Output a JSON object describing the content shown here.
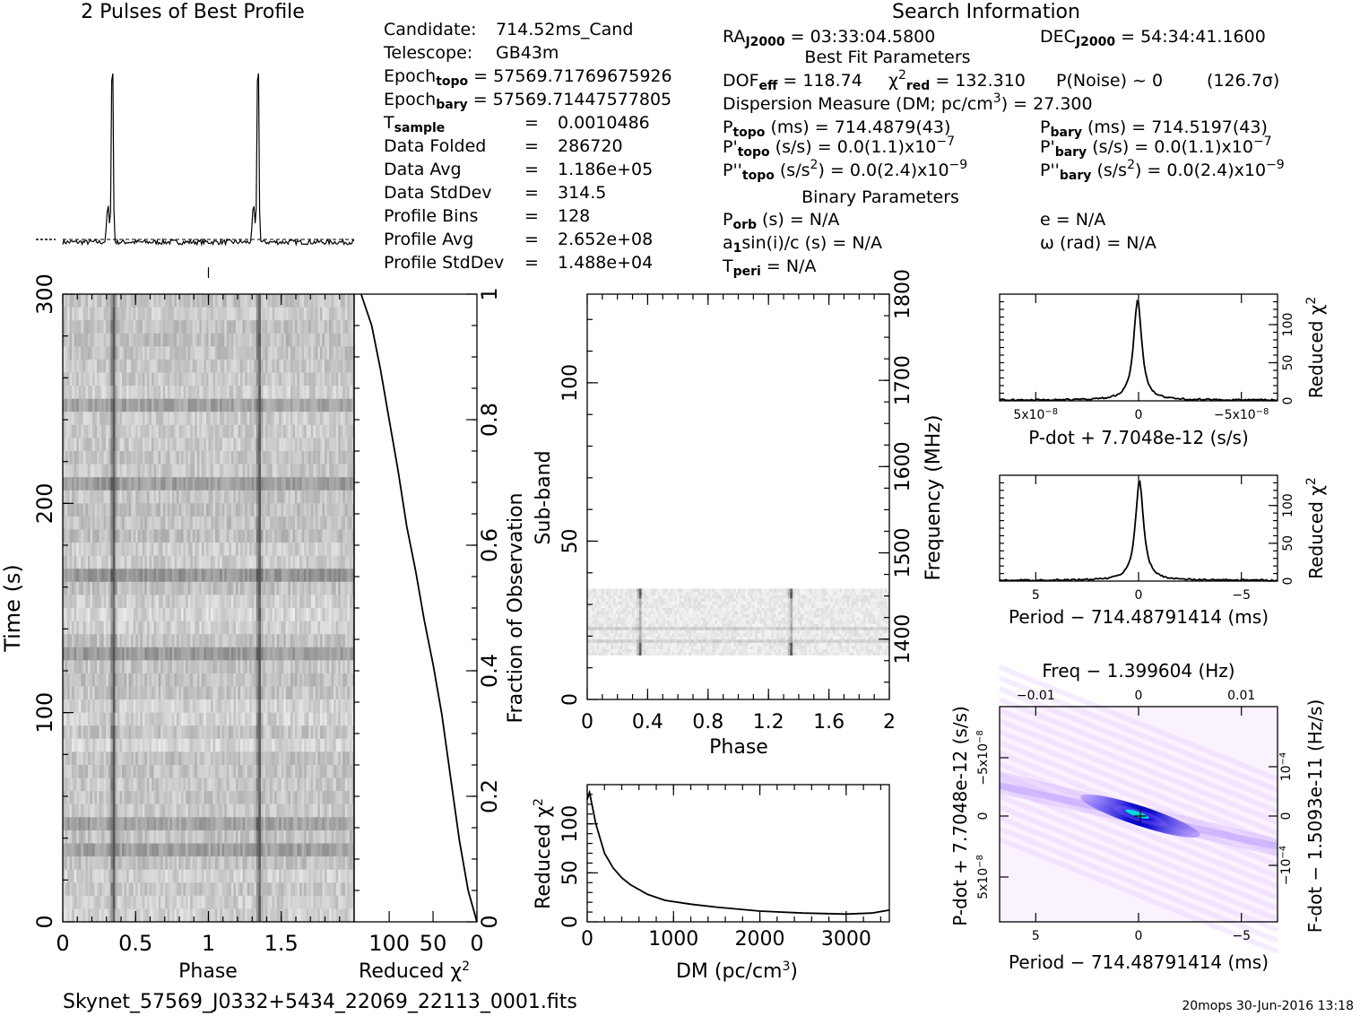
{
  "info": {
    "search_title": "Search Information",
    "profile_title": "2 Pulses of Best Profile",
    "fits_file": "Skynet_57569_J0332+5434_22069_22113_0001.fits",
    "footer_right": "20mops 30-Jun-2016 13:18",
    "col1": [
      {
        "label": "Candidate:",
        "value": "714.52ms_Cand"
      },
      {
        "label": "Telescope:",
        "value": "GB43m"
      },
      {
        "label": "Epoch",
        "sub": "topo",
        "value": "= 57569.71769675926"
      },
      {
        "label": "Epoch",
        "sub": "bary",
        "value": "= 57569.71447577805"
      },
      {
        "label": "T",
        "sub": "sample",
        "eq": "=",
        "value": "0.0010486"
      },
      {
        "label": "Data Folded",
        "eq": "=",
        "value": "286720"
      },
      {
        "label": "Data Avg",
        "eq": "=",
        "value": "1.186e+05"
      },
      {
        "label": "Data StdDev",
        "eq": "=",
        "value": "314.5"
      },
      {
        "label": "Profile Bins",
        "eq": "=",
        "value": "128"
      },
      {
        "label": "Profile Avg",
        "eq": "=",
        "value": "2.652e+08"
      },
      {
        "label": "Profile StdDev",
        "eq": "=",
        "value": "1.488e+04"
      }
    ],
    "ra": {
      "label": "RA",
      "sub": "J2000",
      "value": "= 03:33:04.5800"
    },
    "dec": {
      "label": "DEC",
      "sub": "J2000",
      "value": "= 54:34:41.1600"
    },
    "best_fit_title": "Best Fit Parameters",
    "dof": {
      "label": "DOF",
      "sub": "eff",
      "value": "= 118.74"
    },
    "chi2red": {
      "label": "χ",
      "sup": "2",
      "sub": "red",
      "value": "= 132.310"
    },
    "pnoise": {
      "text": "P(Noise) ~ 0",
      "sigma": "(126.7σ)"
    },
    "dm": {
      "text": "Dispersion Measure (DM; pc/cm",
      "sup": "3",
      "tail": ") = 27.300"
    },
    "ptopo": {
      "label": "P",
      "sub": "topo",
      "units": "(ms) =",
      "value": "714.4879(43)"
    },
    "pbary": {
      "label": "P",
      "sub": "bary",
      "units": "(ms) =",
      "value": "714.5197(43)"
    },
    "pdtopo": {
      "label": "P'",
      "sub": "topo",
      "units": "(s/s) = 0.0(1.1)x10",
      "exp": "−7"
    },
    "pdbary": {
      "label": "P'",
      "sub": "bary",
      "units": "(s/s) = 0.0(1.1)x10",
      "exp": "−7"
    },
    "pddtopo": {
      "label": "P''",
      "sub": "topo",
      "units": "(s/s",
      "sup": "2",
      "tail": ") = 0.0(2.4)x10",
      "exp": "−9"
    },
    "pddbary": {
      "label": "P''",
      "sub": "bary",
      "units": "(s/s",
      "sup": "2",
      "tail": ") = 0.0(2.4)x10",
      "exp": "−9"
    },
    "binary_title": "Binary Parameters",
    "porb": {
      "label": "P",
      "sub": "orb",
      "value": "(s) = N/A"
    },
    "a1": {
      "pre": "a",
      "sub": "1",
      "value": "sin(i)/c (s) = N/A"
    },
    "tperi": {
      "label": "T",
      "sub": "peri",
      "value": "= N/A"
    },
    "ecc": "e = N/A",
    "omega": "ω (rad) = N/A"
  },
  "chart_data": [
    {
      "type": "line",
      "name": "profile",
      "title": "2 Pulses of Best Profile",
      "x": "phase 0–2",
      "peaks_phase": [
        0.34,
        1.34
      ],
      "baseline_rel": 0.04,
      "peak_rel": 1.0
    },
    {
      "type": "heatmap",
      "name": "time-phase",
      "xlabel": "Phase",
      "ylabel": "Time (s)",
      "xticks": [
        "0",
        "0.5",
        "1",
        "1.5"
      ],
      "yticks": [
        "0",
        "100",
        "200",
        "300"
      ],
      "xlim": [
        0,
        2
      ],
      "ylim": [
        0,
        300
      ],
      "pulse_phase": [
        0.34,
        1.34
      ]
    },
    {
      "type": "line",
      "name": "reduced-chi2-vs-time",
      "xlabel": "Reduced χ",
      "xlabel_sup": "2",
      "ylabel": "Fraction of Observation",
      "xticks": [
        "100",
        "50",
        "0"
      ],
      "yticks": [
        "0",
        "0.2",
        "0.4",
        "0.6",
        "0.8",
        "1"
      ],
      "xlim": [
        140,
        0
      ],
      "ylim": [
        0,
        1
      ],
      "x": [
        0,
        10,
        20,
        30,
        40,
        50,
        60,
        70,
        80,
        90,
        100,
        110,
        120,
        132
      ],
      "y": [
        0,
        0.05,
        0.13,
        0.23,
        0.33,
        0.41,
        0.48,
        0.56,
        0.63,
        0.72,
        0.8,
        0.88,
        0.95,
        1.0
      ]
    },
    {
      "type": "heatmap",
      "name": "subband-phase",
      "xlabel": "Phase",
      "ylabel": "Sub-band",
      "y2label": "Frequency (MHz)",
      "xticks": [
        "0",
        "0.4",
        "0.8",
        "1.2",
        "1.6",
        "2"
      ],
      "yticks": [
        "0",
        "50",
        "100"
      ],
      "y2ticks": [
        "1400",
        "1500",
        "1600",
        "1700",
        "1800"
      ],
      "xlim": [
        0,
        2
      ],
      "ylim": [
        0,
        128
      ],
      "y2lim": [
        1330,
        1800
      ],
      "active_band": [
        14,
        35
      ],
      "pulse_phase": [
        0.34,
        1.34
      ]
    },
    {
      "type": "line",
      "name": "dm-curve",
      "xlabel": "DM (pc/cm",
      "xlabel_sup": "3",
      "ylabel": "Reduced χ",
      "ylabel_sup": "2",
      "xticks": [
        "0",
        "1000",
        "2000",
        "3000"
      ],
      "yticks": [
        "0",
        "50",
        "100"
      ],
      "xlim": [
        0,
        3500
      ],
      "ylim": [
        0,
        140
      ],
      "x": [
        0,
        27,
        100,
        200,
        300,
        400,
        500,
        700,
        900,
        1200,
        1500,
        2000,
        2500,
        3000,
        3300,
        3500
      ],
      "y": [
        125,
        132,
        100,
        70,
        55,
        45,
        38,
        28,
        22,
        18,
        15,
        11,
        9,
        8,
        9,
        12
      ]
    },
    {
      "type": "line",
      "name": "pdot-curve",
      "xlabel": "P-dot + 7.7048e-12 (s/s)",
      "ylabel": "Reduced χ",
      "ylabel_sup": "2",
      "xticks": [
        "5x10",
        "0",
        "−5x10"
      ],
      "xtick_exp": "−8",
      "yticks": [
        "0",
        "50",
        "100"
      ],
      "ylim": [
        0,
        140
      ],
      "peak": 132
    },
    {
      "type": "line",
      "name": "period-curve",
      "xlabel": "Period − 714.48791414 (ms)",
      "ylabel": "Reduced χ",
      "ylabel_sup": "2",
      "xticks": [
        "5",
        "0",
        "−5"
      ],
      "yticks": [
        "0",
        "50",
        "100"
      ],
      "ylim": [
        0,
        140
      ],
      "peak": 132
    },
    {
      "type": "heatmap",
      "name": "period-pdot",
      "xlabel": "Period − 714.48791414 (ms)",
      "x2label": "Freq − 1.399604 (Hz)",
      "ylabel": "P-dot + 7.7048e-12 (s/s)",
      "y2label": "F-dot − 1.5093e-11 (Hz/s)",
      "xticks": [
        "5",
        "0",
        "−5"
      ],
      "x2ticks": [
        "−0.01",
        "0",
        "0.01"
      ],
      "yticks": [
        "−5x10",
        "0",
        "5x10"
      ],
      "ytick_exp": "−8",
      "y2ticks": [
        "10",
        "0",
        "−10"
      ],
      "y2tick_exp": "−4",
      "colors": {
        "low": "#ffffff",
        "mid": "#c040ff",
        "high": "#0000cc",
        "peak": "#00d0d0"
      }
    }
  ]
}
